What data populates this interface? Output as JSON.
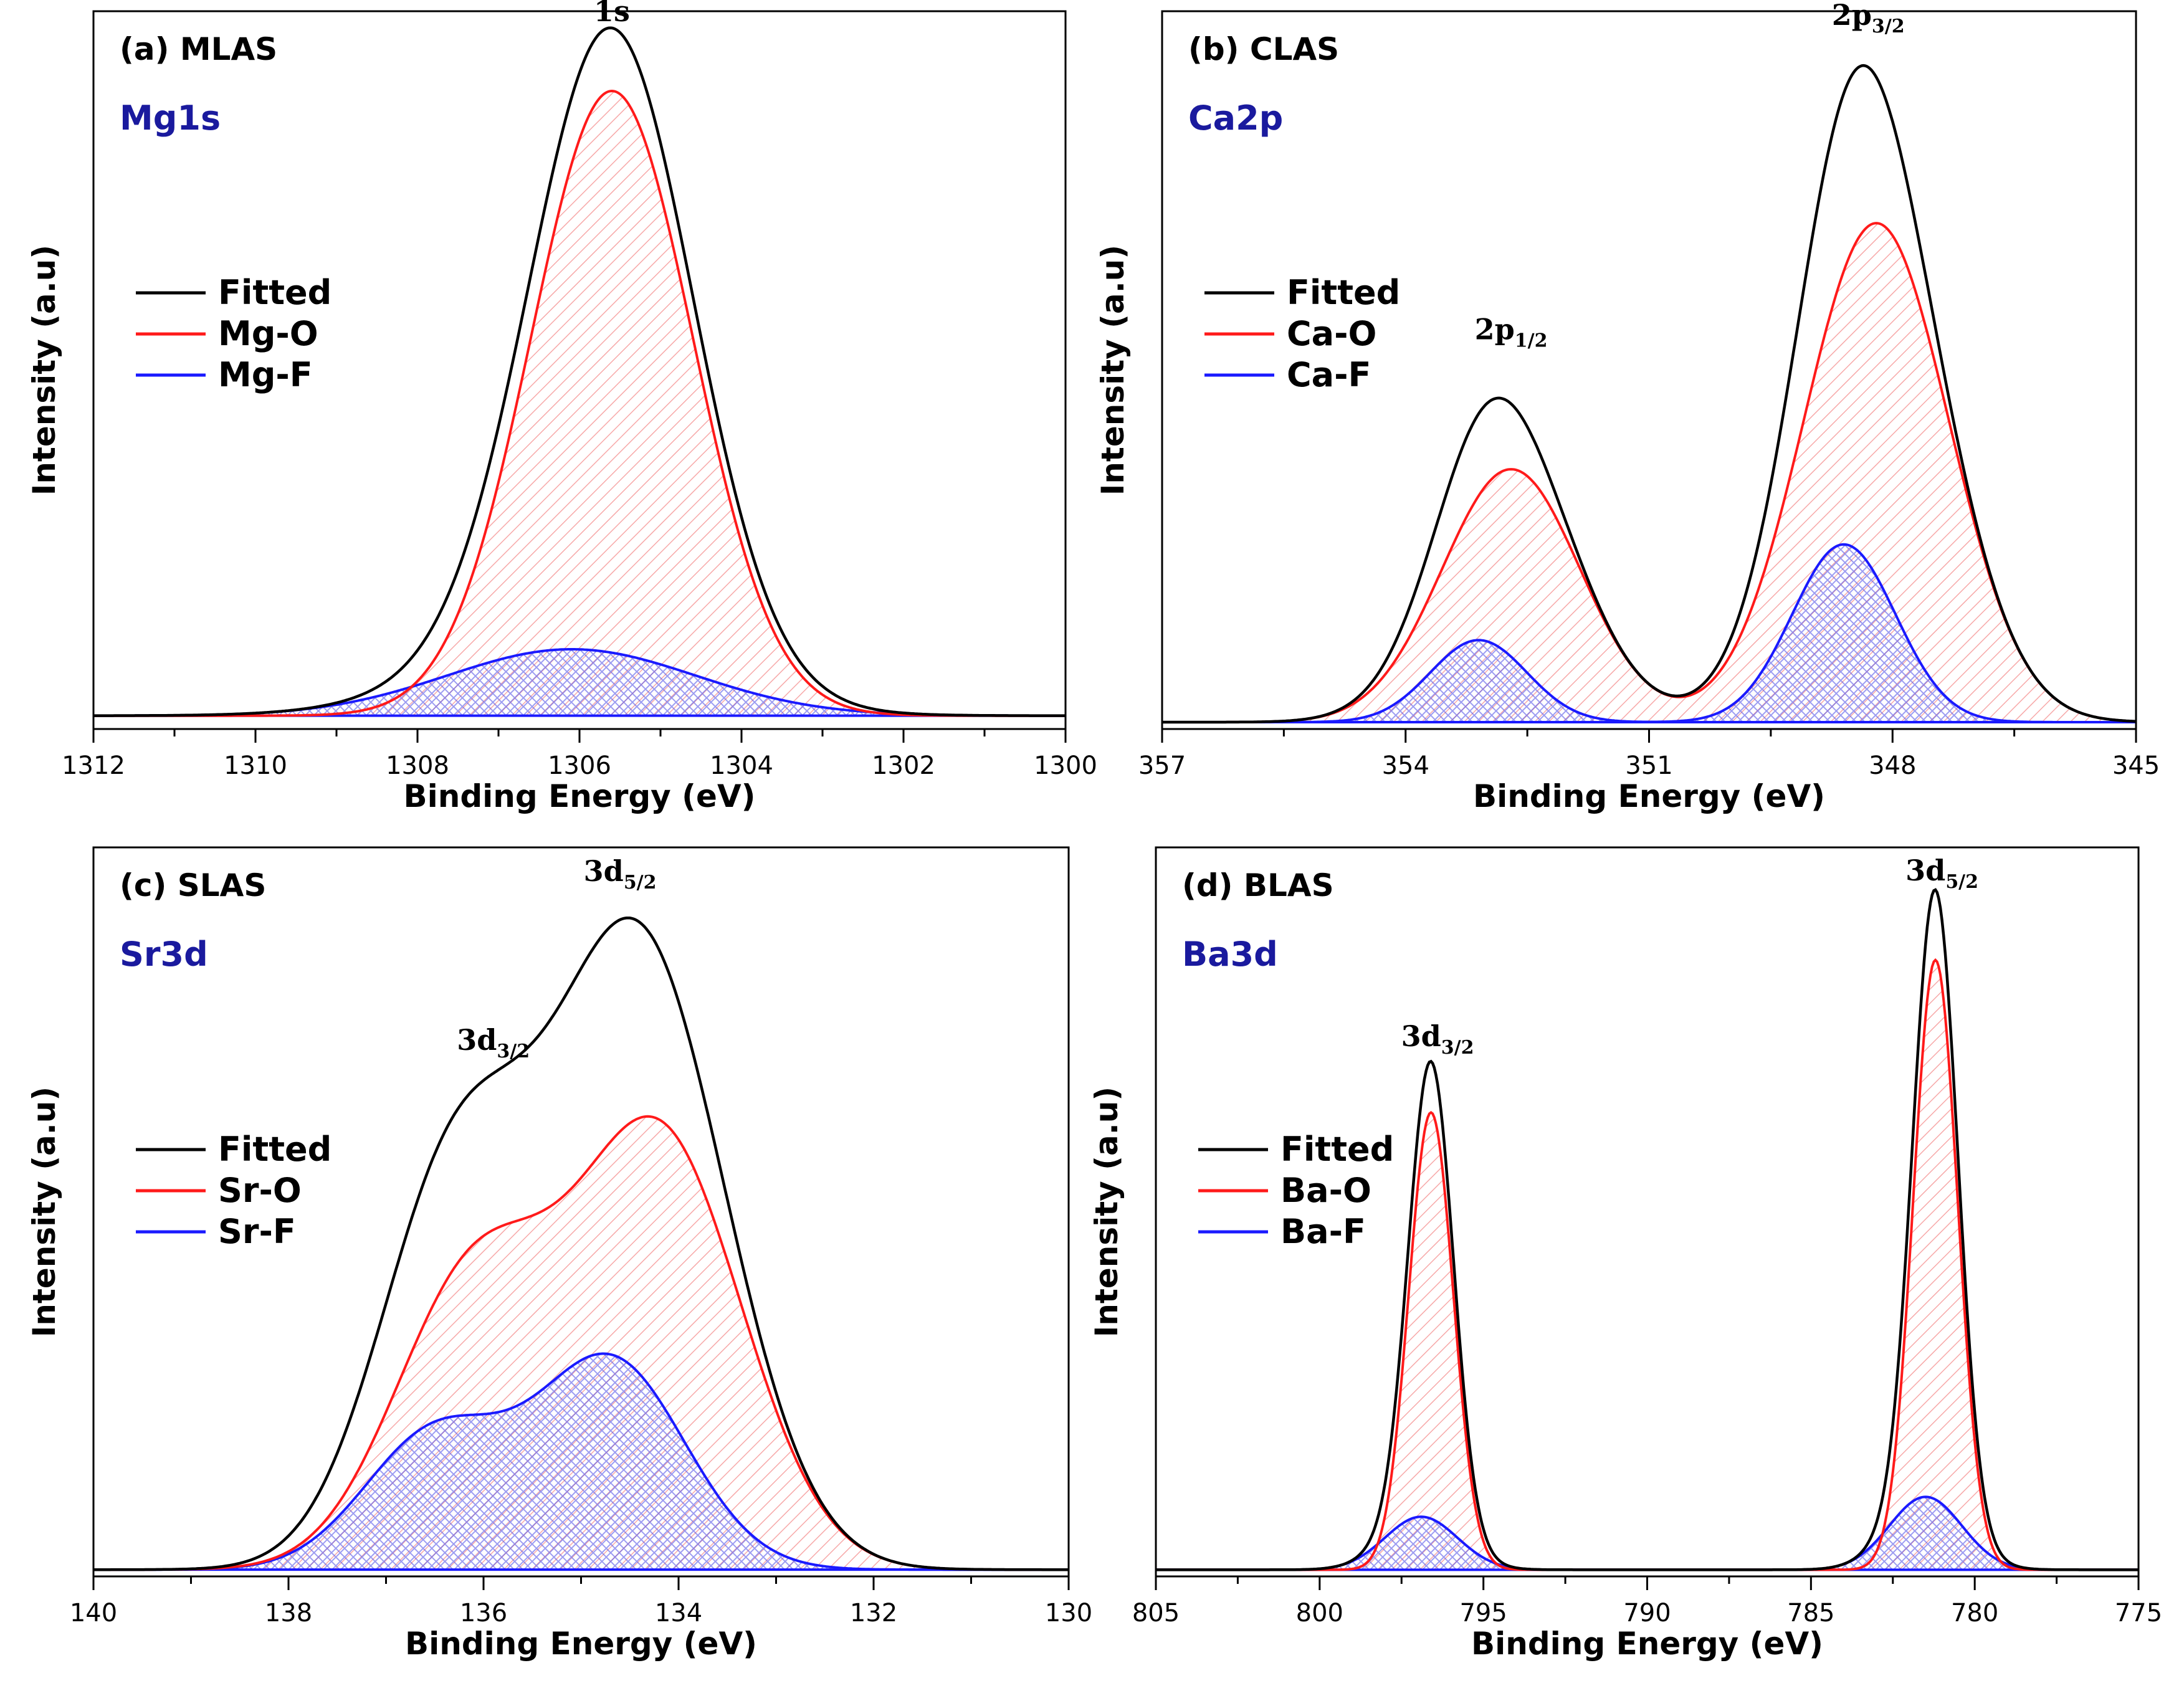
{
  "colors": {
    "fitted": "#000000",
    "oxide": "#ff1a1a",
    "fluoride": "#1a1aff",
    "oxide_fill": "#f06060",
    "fluoride_fill": "#5a5ae8",
    "element_label": "#1a1a9e"
  },
  "chart_data": [
    {
      "type": "line",
      "panel_label": "(a) MLAS",
      "element": "Mg1s",
      "xlabel": "Binding Energy (eV)",
      "ylabel": "Intensity (a.u)",
      "xlim": [
        1312,
        1300
      ],
      "xticks": [
        1312,
        1310,
        1308,
        1306,
        1304,
        1302,
        1300
      ],
      "ylim": [
        0,
        1.08
      ],
      "legend_position": "left",
      "legend": [
        "Fitted",
        "Mg-O",
        "Mg-F"
      ],
      "baseline": 0.02,
      "series": [
        {
          "name": "Mg-O",
          "role": "oxide",
          "peaks": [
            {
              "center": 1305.6,
              "height": 0.94,
              "fwhm": 2.35
            }
          ]
        },
        {
          "name": "Mg-F",
          "role": "fluoride",
          "peaks": [
            {
              "center": 1306.1,
              "height": 0.1,
              "fwhm": 3.6
            }
          ]
        }
      ],
      "annotations": [
        {
          "text": "1s",
          "x": 1305.6,
          "y": 1.065,
          "base": "1s",
          "sub": ""
        }
      ]
    },
    {
      "type": "line",
      "panel_label": "(b) CLAS",
      "element": "Ca2p",
      "xlabel": "Binding Energy (eV)",
      "ylabel": "Intensity (a.u)",
      "xlim": [
        357,
        345
      ],
      "xticks": [
        357,
        354,
        351,
        348,
        345
      ],
      "ylim": [
        0,
        1.05
      ],
      "legend_position": "left",
      "legend": [
        "Fitted",
        "Ca-O",
        "Ca-F"
      ],
      "baseline": 0.01,
      "series": [
        {
          "name": "Ca-O",
          "role": "oxide",
          "peaks": [
            {
              "center": 352.7,
              "height": 0.37,
              "fwhm": 2.0
            },
            {
              "center": 348.2,
              "height": 0.73,
              "fwhm": 2.1
            }
          ]
        },
        {
          "name": "Ca-F",
          "role": "fluoride",
          "peaks": [
            {
              "center": 353.1,
              "height": 0.12,
              "fwhm": 1.4
            },
            {
              "center": 348.6,
              "height": 0.26,
              "fwhm": 1.5
            }
          ]
        }
      ],
      "annotations": [
        {
          "text": "2p1/2",
          "x": 352.7,
          "y": 0.57,
          "base": "2p",
          "sub": "1/2"
        },
        {
          "text": "2p3/2",
          "x": 348.3,
          "y": 1.03,
          "base": "2p",
          "sub": "3/2"
        }
      ]
    },
    {
      "type": "line",
      "panel_label": "(c) SLAS",
      "element": "Sr3d",
      "xlabel": "Binding Energy (eV)",
      "ylabel": "Intensity (a.u)",
      "xlim": [
        140,
        130
      ],
      "xticks": [
        140,
        138,
        136,
        134,
        132,
        130
      ],
      "ylim": [
        0,
        1.08
      ],
      "legend_position": "left",
      "legend": [
        "Fitted",
        "Sr-O",
        "Sr-F"
      ],
      "baseline": 0.01,
      "series": [
        {
          "name": "Sr-O",
          "role": "oxide",
          "peaks": [
            {
              "center": 136.1,
              "height": 0.43,
              "fwhm": 1.9
            },
            {
              "center": 134.2,
              "height": 0.64,
              "fwhm": 2.0
            }
          ]
        },
        {
          "name": "Sr-F",
          "role": "fluoride",
          "peaks": [
            {
              "center": 136.5,
              "height": 0.2,
              "fwhm": 1.7
            },
            {
              "center": 134.7,
              "height": 0.31,
              "fwhm": 1.8
            }
          ]
        }
      ],
      "annotations": [
        {
          "text": "3d3/2",
          "x": 135.9,
          "y": 0.78,
          "base": "3d",
          "sub": "3/2"
        },
        {
          "text": "3d5/2",
          "x": 134.6,
          "y": 1.03,
          "base": "3d",
          "sub": "5/2"
        }
      ]
    },
    {
      "type": "line",
      "panel_label": "(d) BLAS",
      "element": "Ba3d",
      "xlabel": "Binding Energy (eV)",
      "ylabel": "Intensity (a.u)",
      "xlim": [
        805,
        775
      ],
      "xticks": [
        805,
        800,
        795,
        790,
        785,
        780,
        775
      ],
      "ylim": [
        0,
        1.1
      ],
      "legend_position": "left",
      "legend": [
        "Fitted",
        "Ba-O",
        "Ba-F"
      ],
      "baseline": 0.01,
      "series": [
        {
          "name": "Ba-O",
          "role": "oxide",
          "peaks": [
            {
              "center": 796.6,
              "height": 0.69,
              "fwhm": 1.6
            },
            {
              "center": 781.2,
              "height": 0.92,
              "fwhm": 1.6
            }
          ]
        },
        {
          "name": "Ba-F",
          "role": "fluoride",
          "peaks": [
            {
              "center": 796.9,
              "height": 0.08,
              "fwhm": 2.6
            },
            {
              "center": 781.5,
              "height": 0.11,
              "fwhm": 2.6
            }
          ]
        }
      ],
      "annotations": [
        {
          "text": "3d3/2",
          "x": 796.4,
          "y": 0.8,
          "base": "3d",
          "sub": "3/2"
        },
        {
          "text": "3d5/2",
          "x": 781.0,
          "y": 1.05,
          "base": "3d",
          "sub": "5/2"
        }
      ]
    }
  ]
}
